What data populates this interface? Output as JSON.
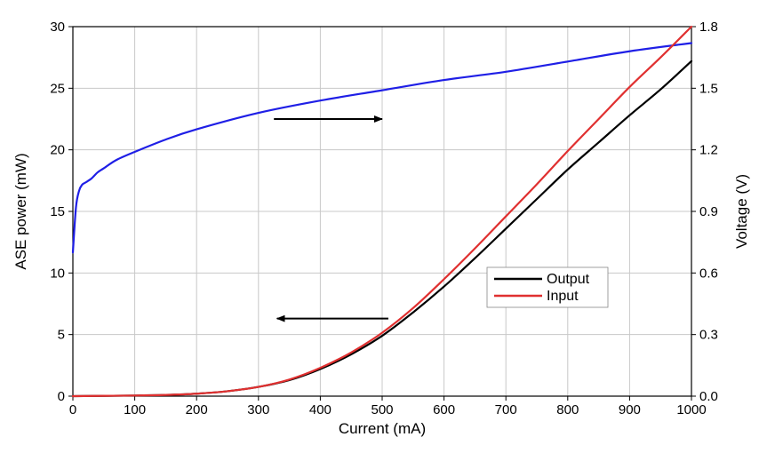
{
  "chart_data": {
    "type": "line",
    "xlabel": "Current (mA)",
    "ylabel_left": "ASE power (mW)",
    "ylabel_right": "Voltage (V)",
    "xlim": [
      0,
      1000
    ],
    "ylim_left": [
      0,
      30
    ],
    "ylim_right": [
      0,
      1.8
    ],
    "x_ticks": [
      "0",
      "100",
      "200",
      "300",
      "400",
      "500",
      "600",
      "700",
      "800",
      "900",
      "1000"
    ],
    "y_left_ticks": [
      "0",
      "5",
      "10",
      "15",
      "20",
      "25",
      "30"
    ],
    "y_right_ticks": [
      "0.0",
      "0.3",
      "0.6",
      "0.9",
      "1.2",
      "1.5",
      "1.8"
    ],
    "grid": true,
    "legend_position": "center-right",
    "series": [
      {
        "name": "Output",
        "axis": "left",
        "color": "#000000",
        "x": [
          0,
          100,
          150,
          200,
          250,
          300,
          350,
          400,
          450,
          500,
          550,
          600,
          650,
          700,
          750,
          800,
          850,
          900,
          950,
          1000
        ],
        "values": [
          0,
          0.05,
          0.1,
          0.2,
          0.4,
          0.75,
          1.3,
          2.2,
          3.4,
          4.9,
          6.8,
          8.9,
          11.2,
          13.6,
          16.0,
          18.4,
          20.6,
          22.8,
          24.9,
          27.2
        ]
      },
      {
        "name": "Input",
        "axis": "left",
        "color": "#e03030",
        "x": [
          0,
          100,
          150,
          200,
          250,
          300,
          350,
          400,
          450,
          500,
          550,
          600,
          650,
          700,
          750,
          800,
          850,
          900,
          950,
          1000
        ],
        "values": [
          0,
          0.05,
          0.1,
          0.2,
          0.4,
          0.75,
          1.35,
          2.3,
          3.55,
          5.15,
          7.15,
          9.5,
          12.0,
          14.6,
          17.2,
          19.9,
          22.5,
          25.1,
          27.5,
          30.0
        ]
      },
      {
        "axis": "right",
        "color": "#1f1fe6",
        "x": [
          0,
          5,
          10,
          15,
          20,
          30,
          40,
          50,
          70,
          100,
          150,
          200,
          300,
          400,
          500,
          600,
          700,
          800,
          900,
          1000
        ],
        "values": [
          0.7,
          0.92,
          1.0,
          1.03,
          1.04,
          1.06,
          1.09,
          1.11,
          1.15,
          1.19,
          1.25,
          1.3,
          1.38,
          1.44,
          1.49,
          1.54,
          1.58,
          1.63,
          1.68,
          1.72
        ]
      }
    ],
    "annotations": [
      {
        "type": "arrow",
        "direction": "right",
        "from": [
          325,
          22.5
        ],
        "to": [
          500,
          22.5
        ],
        "meaning": "blue curve on right axis"
      },
      {
        "type": "arrow",
        "direction": "left",
        "from": [
          510,
          6.3
        ],
        "to": [
          330,
          6.3
        ],
        "meaning": "black/red curves on left axis"
      }
    ]
  }
}
